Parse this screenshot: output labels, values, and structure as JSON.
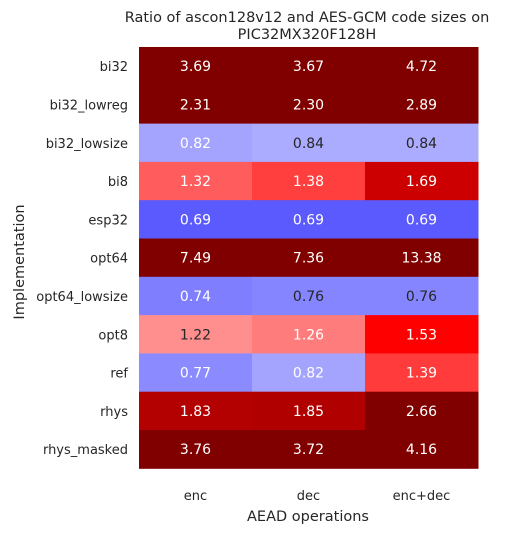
{
  "chart_data": {
    "type": "heatmap",
    "title_lines": [
      "Ratio of ascon128v12 and AES-GCM code sizes on",
      "PIC32MX320F128H"
    ],
    "xlabel": "AEAD operations",
    "ylabel": "Implementation",
    "columns": [
      "enc",
      "dec",
      "enc+dec"
    ],
    "rows": [
      "bi32",
      "bi32_lowreg",
      "bi32_lowsize",
      "bi8",
      "esp32",
      "opt64",
      "opt64_lowsize",
      "opt8",
      "ref",
      "rhys",
      "rhys_masked"
    ],
    "values": [
      [
        3.69,
        3.67,
        4.72
      ],
      [
        2.31,
        2.3,
        2.89
      ],
      [
        0.82,
        0.84,
        0.84
      ],
      [
        1.32,
        1.38,
        1.69
      ],
      [
        0.69,
        0.69,
        0.69
      ],
      [
        7.49,
        7.36,
        13.38
      ],
      [
        0.74,
        0.76,
        0.76
      ],
      [
        1.22,
        1.26,
        1.53
      ],
      [
        0.77,
        0.82,
        1.39
      ],
      [
        1.83,
        1.85,
        2.66
      ],
      [
        3.76,
        3.72,
        4.16
      ]
    ],
    "value_labels": [
      [
        "3.69",
        "3.67",
        "4.72"
      ],
      [
        "2.31",
        "2.30",
        "2.89"
      ],
      [
        "0.82",
        "0.84",
        "0.84"
      ],
      [
        "1.32",
        "1.38",
        "1.69"
      ],
      [
        "0.69",
        "0.69",
        "0.69"
      ],
      [
        "7.49",
        "7.36",
        "13.38"
      ],
      [
        "0.74",
        "0.76",
        "0.76"
      ],
      [
        "1.22",
        "1.26",
        "1.53"
      ],
      [
        "0.77",
        "0.82",
        "1.39"
      ],
      [
        "1.83",
        "1.85",
        "2.66"
      ],
      [
        "3.76",
        "3.72",
        "4.16"
      ]
    ],
    "cell_colors": [
      [
        "#800000",
        "#800000",
        "#800000"
      ],
      [
        "#800000",
        "#800000",
        "#800000"
      ],
      [
        "#a4a4ff",
        "#ababff",
        "#ababff"
      ],
      [
        "#ff5d5d",
        "#ff3e3e",
        "#cc0000"
      ],
      [
        "#5a5aff",
        "#5a5aff",
        "#5a5aff"
      ],
      [
        "#800000",
        "#800000",
        "#800000"
      ],
      [
        "#7e7eff",
        "#8585ff",
        "#8585ff"
      ],
      [
        "#ff8e8e",
        "#ff7c7c",
        "#ff0000"
      ],
      [
        "#8b8bff",
        "#a4a4ff",
        "#ff3b3b"
      ],
      [
        "#b30000",
        "#b00000",
        "#800000"
      ],
      [
        "#800000",
        "#800000",
        "#800000"
      ]
    ],
    "text_colors": [
      [
        "#ffffff",
        "#ffffff",
        "#ffffff"
      ],
      [
        "#ffffff",
        "#ffffff",
        "#ffffff"
      ],
      [
        "#ffffff",
        "#262626",
        "#262626"
      ],
      [
        "#ffffff",
        "#ffffff",
        "#ffffff"
      ],
      [
        "#ffffff",
        "#ffffff",
        "#ffffff"
      ],
      [
        "#ffffff",
        "#ffffff",
        "#ffffff"
      ],
      [
        "#ffffff",
        "#262626",
        "#262626"
      ],
      [
        "#262626",
        "#ffffff",
        "#ffffff"
      ],
      [
        "#ffffff",
        "#ffffff",
        "#ffffff"
      ],
      [
        "#ffffff",
        "#ffffff",
        "#ffffff"
      ],
      [
        "#ffffff",
        "#ffffff",
        "#ffffff"
      ]
    ],
    "grid": false,
    "legend": "none"
  }
}
